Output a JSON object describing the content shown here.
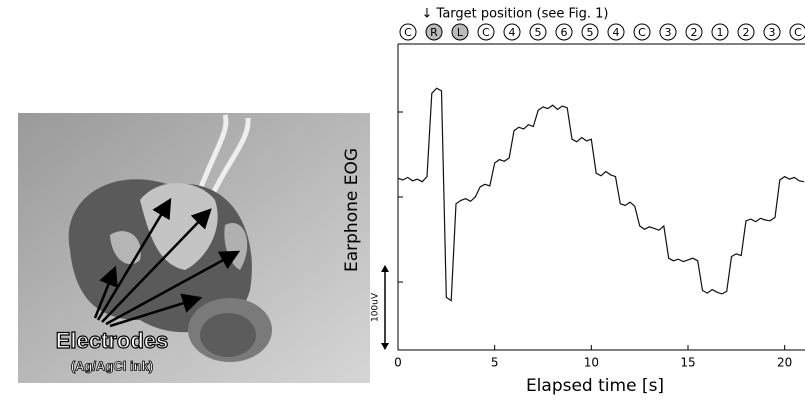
{
  "photo": {
    "label": "Electrodes",
    "sublabel": "(Ag/AgCl ink)"
  },
  "chart_data": {
    "type": "line",
    "annotation": "↓ Target position (see Fig. 1)",
    "target_labels": [
      "C",
      "R",
      "L",
      "C",
      "4",
      "5",
      "6",
      "5",
      "4",
      "C",
      "3",
      "2",
      "1",
      "2",
      "3",
      "C"
    ],
    "highlighted": [
      1,
      2
    ],
    "xlabel": "Elapsed time [s]",
    "ylabel": "Earphone EOG",
    "scale_bar": {
      "label": "100uV",
      "value": 100
    },
    "color": "#111111",
    "xlim": [
      0,
      21
    ],
    "xticks": [
      0,
      5,
      10,
      15,
      20
    ],
    "ylim": [
      -80,
      280
    ],
    "yticks": [
      0,
      100,
      200
    ],
    "x": [
      0,
      0.25,
      0.5,
      0.75,
      1,
      1.25,
      1.5,
      1.75,
      2,
      2.25,
      2.5,
      2.75,
      3,
      3.25,
      3.5,
      3.75,
      4,
      4.25,
      4.5,
      4.75,
      5,
      5.25,
      5.5,
      5.75,
      6,
      6.25,
      6.5,
      6.75,
      7,
      7.25,
      7.5,
      7.75,
      8,
      8.25,
      8.5,
      8.75,
      9,
      9.25,
      9.5,
      9.75,
      10,
      10.25,
      10.5,
      10.75,
      11,
      11.25,
      11.5,
      11.75,
      12,
      12.25,
      12.5,
      12.75,
      13,
      13.25,
      13.5,
      13.75,
      14,
      14.25,
      14.5,
      14.75,
      15,
      15.25,
      15.5,
      15.75,
      16,
      16.25,
      16.5,
      16.75,
      17,
      17.25,
      17.5,
      17.75,
      18,
      18.25,
      18.5,
      18.75,
      19,
      19.25,
      19.5,
      19.75,
      20,
      20.25,
      20.5,
      20.75,
      21
    ],
    "values": [
      122,
      120,
      123,
      119,
      121,
      118,
      124,
      222,
      228,
      225,
      -18,
      -22,
      92,
      96,
      98,
      95,
      100,
      112,
      115,
      113,
      140,
      144,
      142,
      146,
      178,
      182,
      180,
      185,
      183,
      202,
      206,
      204,
      208,
      203,
      207,
      205,
      168,
      165,
      170,
      166,
      168,
      128,
      125,
      130,
      126,
      124,
      92,
      90,
      94,
      89,
      66,
      62,
      65,
      63,
      61,
      66,
      28,
      25,
      27,
      24,
      26,
      28,
      25,
      -10,
      -13,
      -9,
      -12,
      -14,
      -11,
      30,
      33,
      31,
      72,
      74,
      71,
      75,
      73,
      72,
      76,
      120,
      124,
      121,
      123,
      119,
      118
    ]
  }
}
